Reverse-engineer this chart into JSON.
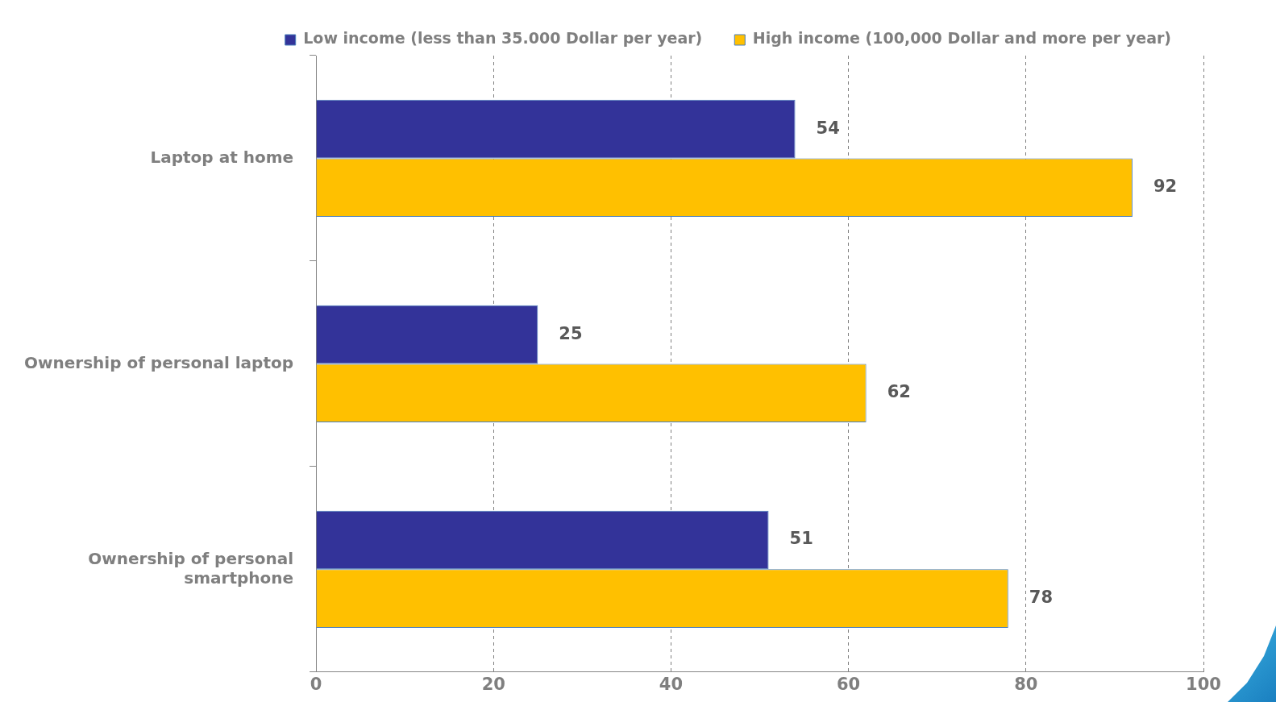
{
  "chart_data": {
    "type": "bar",
    "orientation": "horizontal",
    "categories": [
      "Laptop at home",
      "Ownership of personal laptop",
      "Ownership of personal smartphone"
    ],
    "series": [
      {
        "name": "Low income (less than 35.000 Dollar per year)",
        "color": "#333399",
        "values": [
          54,
          25,
          51
        ]
      },
      {
        "name": "High income (100,000 Dollar and more per year)",
        "color": "#ffc000",
        "values": [
          92,
          62,
          78
        ]
      }
    ],
    "xlim": [
      0,
      100
    ],
    "xticks": [
      0,
      20,
      40,
      60,
      80,
      100
    ],
    "grid": "x",
    "legend": "top",
    "data_labels": true
  }
}
